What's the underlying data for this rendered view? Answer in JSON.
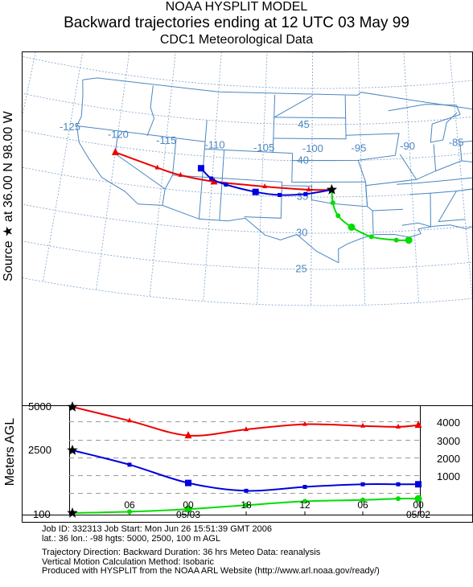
{
  "header": {
    "line1": "NOAA HYSPLIT MODEL",
    "line2": "Backward trajectories ending at 12 UTC 03 May 99",
    "line3": "CDC1 Meteorological Data"
  },
  "side_label": "Source ★ at 36.00 N 98.00 W",
  "map": {
    "latitude_labels": [
      "45",
      "40",
      "35",
      "30",
      "25"
    ],
    "longitude_labels": [
      "-125",
      "-120",
      "-115",
      "-110",
      "-105",
      "-100",
      "-95",
      "-90",
      "-85"
    ],
    "source": {
      "lat": 36.0,
      "lon": -98.0
    },
    "trajectories": [
      {
        "name": "5000",
        "color": "#ee0000",
        "marker": "triangle",
        "points": [
          [
            -120.0,
            39.2
          ],
          [
            -115.6,
            37.8
          ],
          [
            -113.2,
            37.1
          ],
          [
            -109.8,
            36.6
          ],
          [
            -104.7,
            36.3
          ],
          [
            -100.3,
            36.0
          ],
          [
            -98.0,
            36.0
          ]
        ]
      },
      {
        "name": "2500",
        "color": "#0000dd",
        "marker": "square",
        "points": [
          [
            -111.2,
            38.3
          ],
          [
            -110.1,
            37.0
          ],
          [
            -108.6,
            36.3
          ],
          [
            -105.6,
            35.5
          ],
          [
            -103.2,
            35.2
          ],
          [
            -100.6,
            35.4
          ],
          [
            -98.0,
            36.0
          ]
        ]
      },
      {
        "name": "100",
        "color": "#00dd00",
        "marker": "circle",
        "points": [
          [
            -98.0,
            36.0
          ],
          [
            -97.9,
            34.2
          ],
          [
            -97.4,
            32.4
          ],
          [
            -96.1,
            30.8
          ],
          [
            -94.2,
            29.4
          ],
          [
            -91.8,
            28.8
          ],
          [
            -90.6,
            28.7
          ]
        ]
      }
    ]
  },
  "profile": {
    "ylabel": "Meters AGL",
    "left_ticks": [
      "5000",
      "2500",
      "100"
    ],
    "right_ticks": [
      "4000",
      "3000",
      "2000",
      "1000"
    ],
    "hour_ticks": [
      "06",
      "00",
      "18",
      "12",
      "06",
      "00"
    ],
    "date_ticks": [
      "05/03",
      "05/02"
    ],
    "series": [
      {
        "name": "5000",
        "color": "#ee0000",
        "values": [
          5000,
          4200,
          3350,
          3700,
          4000,
          3900,
          3850,
          3950
        ]
      },
      {
        "name": "2500",
        "color": "#0000dd",
        "values": [
          2500,
          1950,
          1250,
          950,
          1100,
          1200,
          1200,
          1200
        ]
      },
      {
        "name": "100",
        "color": "#00dd00",
        "values": [
          100,
          150,
          250,
          400,
          550,
          600,
          650,
          650
        ]
      }
    ]
  },
  "info": {
    "line1": "Job ID: 332313          Job Start: Mon Jun 26 15:51:39 GMT 2006",
    "line2": "lat.: 36  lon.: -98  hgts: 5000, 2500, 100 m AGL",
    "line3": "Trajectory Direction: Backward    Duration: 36 hrs    Meteo Data: reanalysis",
    "line4": "Vertical Motion Calculation Method: Isobaric",
    "line5": "Produced with HYSPLIT from the NOAA ARL Website (http://www.arl.noaa.gov/ready/)"
  },
  "colors": {
    "grid": "#7aa0c8",
    "border": "#4a86c0",
    "label": "#4a86c0"
  }
}
